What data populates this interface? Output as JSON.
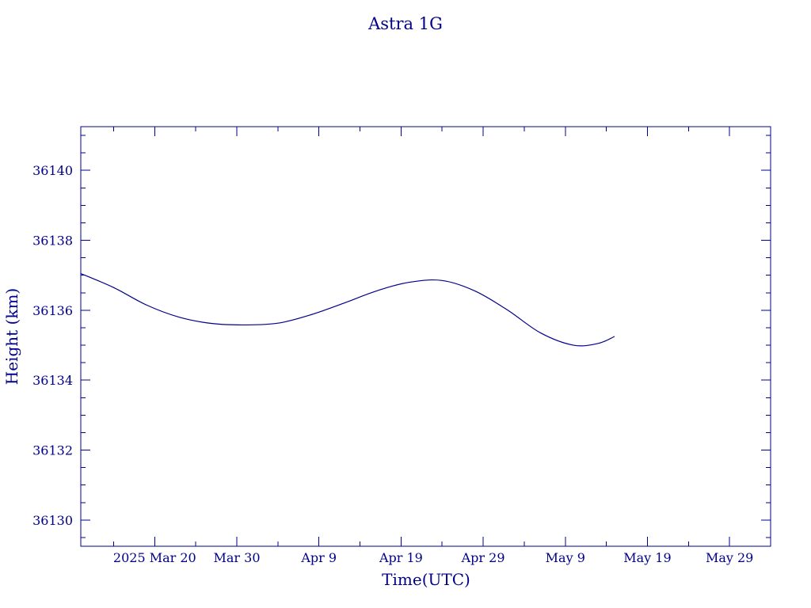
{
  "chart_data": {
    "type": "line",
    "title": "Astra 1G",
    "xlabel": "Time(UTC)",
    "ylabel": "Height (km)",
    "x_ticks": [
      {
        "label": "2025 Mar 20",
        "date": "2025-03-20"
      },
      {
        "label": "Mar 30",
        "date": "2025-03-30"
      },
      {
        "label": "Apr  9",
        "date": "2025-04-09"
      },
      {
        "label": "Apr 19",
        "date": "2025-04-19"
      },
      {
        "label": "Apr 29",
        "date": "2025-04-29"
      },
      {
        "label": "May  9",
        "date": "2025-05-09"
      },
      {
        "label": "May 19",
        "date": "2025-05-19"
      },
      {
        "label": "May 29",
        "date": "2025-05-29"
      }
    ],
    "y_ticks": [
      36130,
      36132,
      36134,
      36136,
      36138,
      36140
    ],
    "xlim": [
      "2025-03-11",
      "2025-06-03"
    ],
    "ylim": [
      36129.25,
      36141.25
    ],
    "grid": false,
    "series": [
      {
        "x": [
          "2025-03-11",
          "2025-03-15",
          "2025-03-19",
          "2025-03-23",
          "2025-03-27",
          "2025-03-31",
          "2025-04-04",
          "2025-04-08",
          "2025-04-12",
          "2025-04-16",
          "2025-04-20",
          "2025-04-24",
          "2025-04-28",
          "2025-05-02",
          "2025-05-06",
          "2025-05-10",
          "2025-05-13",
          "2025-05-15"
        ],
        "y": [
          36137.05,
          36136.65,
          36136.15,
          36135.8,
          36135.62,
          36135.58,
          36135.63,
          36135.87,
          36136.2,
          36136.55,
          36136.8,
          36136.85,
          36136.55,
          36136.0,
          36135.35,
          36135.0,
          36135.05,
          36135.25
        ]
      }
    ]
  }
}
